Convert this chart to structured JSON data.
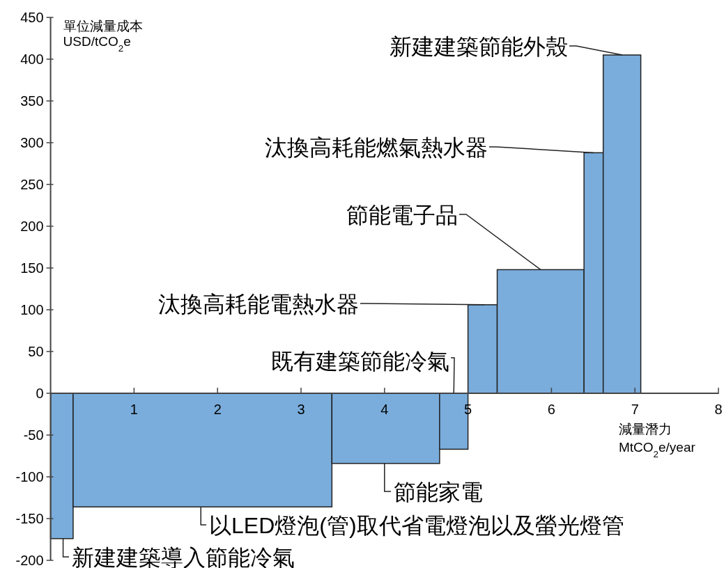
{
  "chart_data": {
    "type": "histogram",
    "color": "#7aaddc",
    "bins": [
      0,
      0.27,
      3.37,
      4.66,
      5.0,
      5.35,
      6.39,
      6.62,
      7.07
    ],
    "values": [
      -174,
      -136,
      -84,
      -67,
      106,
      148,
      288,
      405
    ],
    "xlim": [
      0,
      8
    ],
    "ylim": [
      -200,
      450
    ],
    "xticks": [
      1,
      2,
      3,
      4,
      5,
      6,
      7,
      8
    ],
    "yticks": [
      -200,
      -150,
      -100,
      -50,
      0,
      50,
      100,
      150,
      200,
      250,
      300,
      350,
      400,
      450
    ],
    "ylabel": "單位減量成本\nUSD/tCO$_{2}$e",
    "xlabel": "減量潛力\nMtCO$_{2}$e/year",
    "annotations": [
      {
        "text": "新建建築導入節能冷氣",
        "x": 0.15,
        "y": -174
      },
      {
        "text": "以LED燈泡(管)取代省電燈泡以及螢光燈管",
        "x": 1.8,
        "y": -136
      },
      {
        "text": "節能家電",
        "x": 4.0,
        "y": -84
      },
      {
        "text": "既有建築節能冷氣",
        "x": 4.83,
        "y": 0
      },
      {
        "text": "汰換高耗能電熱水器",
        "x": 5.2,
        "y": 106
      },
      {
        "text": "節能電子品",
        "x": 5.87,
        "y": 148
      },
      "汰換高耗能燃氣熱水器",
      {
        "text": "新建建築節能外殼",
        "x": 6.85,
        "y": 405
      }
    ]
  }
}
